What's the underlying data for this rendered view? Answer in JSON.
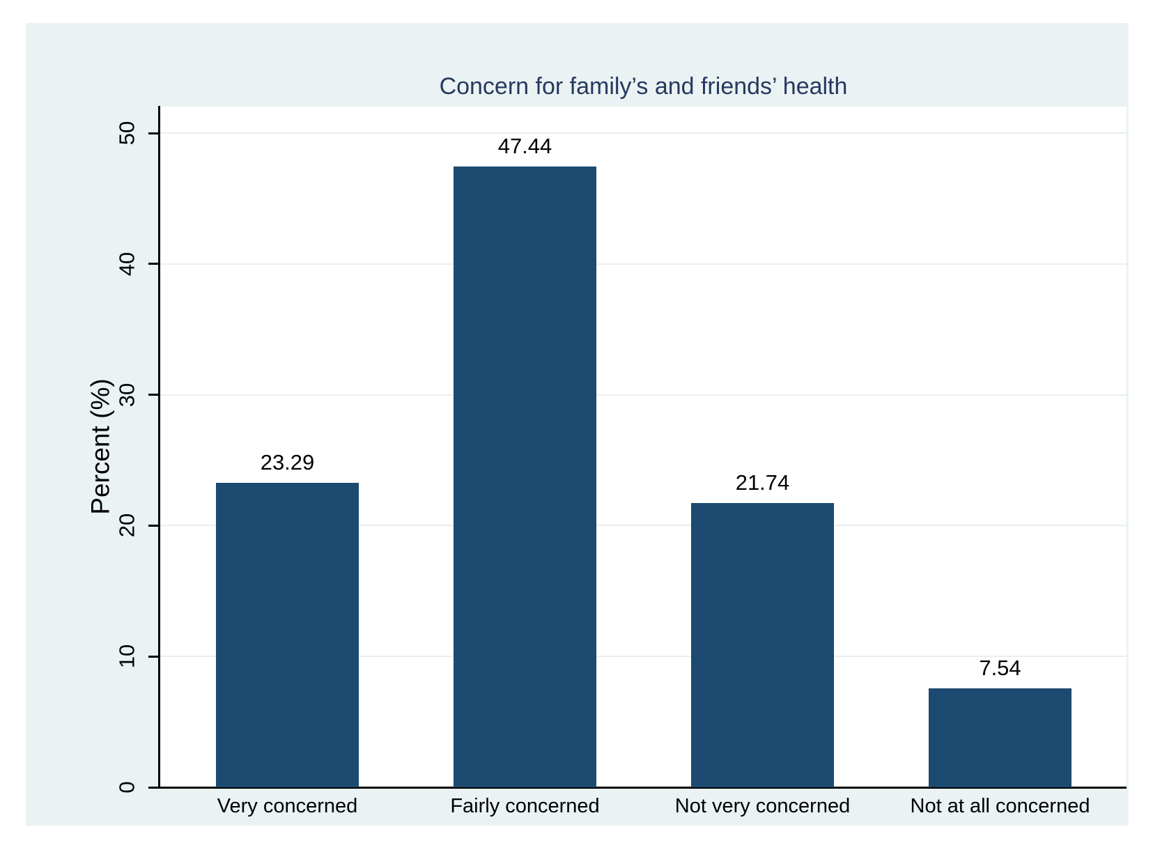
{
  "chart_data": {
    "type": "bar",
    "title": "Concern for family’s and friends’ health",
    "ylabel": "Percent (%)",
    "xlabel": "",
    "categories": [
      "Very concerned",
      "Fairly concerned",
      "Not very concerned",
      "Not at all concerned"
    ],
    "values": [
      23.29,
      47.44,
      21.74,
      7.54
    ],
    "value_labels": [
      "23.29",
      "47.44",
      "21.74",
      "7.54"
    ],
    "yticks": [
      0,
      10,
      20,
      30,
      40,
      50
    ],
    "ylim": [
      0,
      52
    ],
    "grid": true,
    "legend": "none",
    "colors": {
      "bar_fill": "#1c4a70",
      "title_text": "#26395f",
      "axis_line": "#000000",
      "tick_text": "#000000",
      "gridline": "#e7eff2",
      "canvas_background": "#eaf2f3",
      "plot_background": "#ffffff",
      "outer_background": "#ffffff"
    }
  }
}
